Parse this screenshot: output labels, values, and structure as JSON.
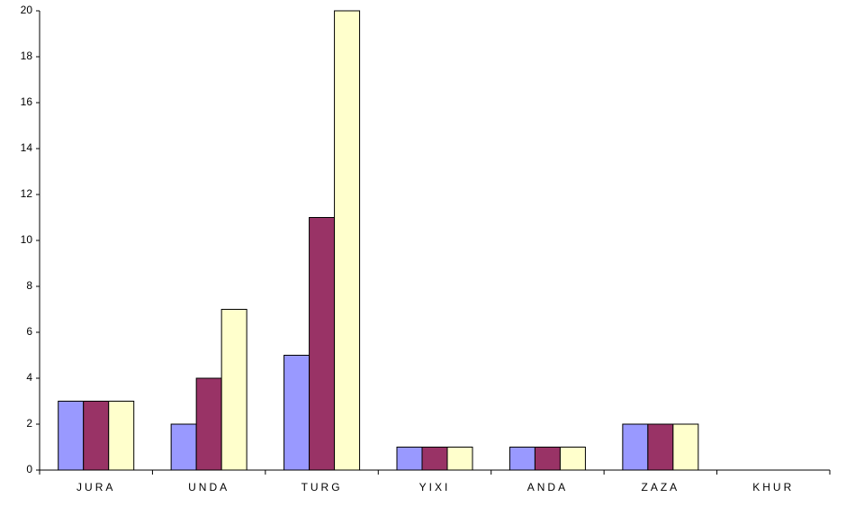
{
  "chart_data": {
    "type": "bar",
    "categories": [
      "JURA",
      "UNDA",
      "TURG",
      "YIXI",
      "ANDA",
      "ZAZA",
      "KHUR"
    ],
    "series": [
      {
        "color": "#9999ff",
        "values": [
          3,
          2,
          5,
          1,
          1,
          2,
          0
        ]
      },
      {
        "color": "#993366",
        "values": [
          3,
          4,
          11,
          1,
          1,
          2,
          0
        ]
      },
      {
        "color": "#ffffcc",
        "values": [
          3,
          7,
          20,
          1,
          1,
          2,
          0
        ]
      }
    ],
    "ylim": [
      0,
      20
    ],
    "yticks": [
      0,
      2,
      4,
      6,
      8,
      10,
      12,
      14,
      16,
      18,
      20
    ],
    "grid": false
  }
}
